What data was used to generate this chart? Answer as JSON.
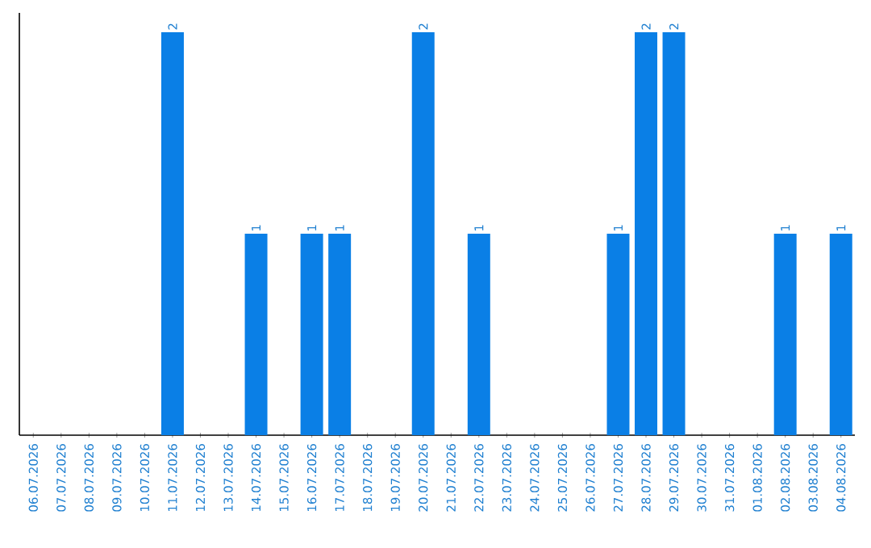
{
  "chart_data": {
    "type": "bar",
    "categories": [
      "06.07.2026",
      "07.07.2026",
      "08.07.2026",
      "09.07.2026",
      "10.07.2026",
      "11.07.2026",
      "12.07.2026",
      "13.07.2026",
      "14.07.2026",
      "15.07.2026",
      "16.07.2026",
      "17.07.2026",
      "18.07.2026",
      "19.07.2026",
      "20.07.2026",
      "21.07.2026",
      "22.07.2026",
      "23.07.2026",
      "24.07.2026",
      "25.07.2026",
      "26.07.2026",
      "27.07.2026",
      "28.07.2026",
      "29.07.2026",
      "30.07.2026",
      "31.07.2026",
      "01.08.2026",
      "02.08.2026",
      "03.08.2026",
      "04.08.2026"
    ],
    "values": [
      0,
      0,
      0,
      0,
      0,
      2,
      0,
      0,
      1,
      0,
      1,
      1,
      0,
      0,
      2,
      0,
      1,
      0,
      0,
      0,
      0,
      1,
      2,
      2,
      0,
      0,
      0,
      1,
      0,
      1
    ],
    "value_labels": [
      null,
      null,
      null,
      null,
      null,
      "2",
      null,
      null,
      "1",
      null,
      "1",
      "1",
      null,
      null,
      "2",
      null,
      "1",
      null,
      null,
      null,
      null,
      "1",
      "2",
      "2",
      null,
      null,
      null,
      "1",
      null,
      "1"
    ],
    "color": "#0a7fe6",
    "tick_labels": "x"
  }
}
